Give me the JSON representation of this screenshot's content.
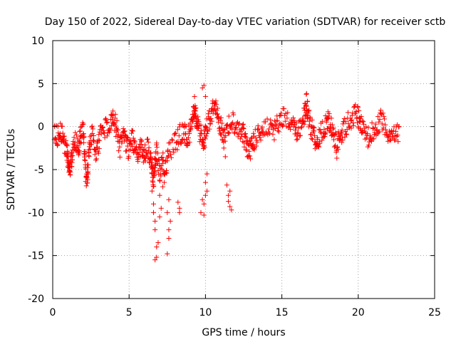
{
  "chart_data": {
    "type": "scatter",
    "title": "Day 150 of 2022, Sidereal Day-to-day VTEC variation (SDTVAR) for receiver sctb",
    "xlabel": "GPS time / hours",
    "ylabel": "SDTVAR / TECUs",
    "xlim": [
      0,
      25
    ],
    "ylim": [
      -20,
      10
    ],
    "xticks": [
      0,
      5,
      10,
      15,
      20,
      25
    ],
    "xtick_labels": [
      "0",
      "5",
      "10",
      "15",
      "20",
      "25"
    ],
    "yticks": [
      10,
      5,
      0,
      -5,
      -10,
      -15,
      -20
    ],
    "ytick_labels": [
      "10",
      "5",
      "0",
      "-5",
      "-10",
      "-15",
      "-20"
    ],
    "grid": true,
    "marker": "+",
    "color": "#ff0000",
    "series": [
      {
        "name": "SDTVAR",
        "trace": [
          [
            0.1,
            -0.5
          ],
          [
            0.3,
            -1.2
          ],
          [
            0.5,
            -0.3
          ],
          [
            0.7,
            -1.5
          ],
          [
            0.9,
            -2.5
          ],
          [
            1.0,
            -4.0
          ],
          [
            1.1,
            -5.2
          ],
          [
            1.2,
            -4.5
          ],
          [
            1.3,
            -3.0
          ],
          [
            1.5,
            -1.5
          ],
          [
            1.7,
            -2.8
          ],
          [
            1.8,
            -1.0
          ],
          [
            2.0,
            -0.5
          ],
          [
            2.1,
            -3.5
          ],
          [
            2.2,
            -6.5
          ],
          [
            2.3,
            -5.0
          ],
          [
            2.4,
            -2.0
          ],
          [
            2.6,
            -1.0
          ],
          [
            2.8,
            -3.5
          ],
          [
            3.0,
            -2.0
          ],
          [
            3.2,
            -0.5
          ],
          [
            3.5,
            -0.2
          ],
          [
            3.8,
            0.3
          ],
          [
            4.0,
            1.2
          ],
          [
            4.2,
            -0.5
          ],
          [
            4.4,
            -2.5
          ],
          [
            4.6,
            -1.0
          ],
          [
            4.8,
            -2.0
          ],
          [
            5.0,
            -2.8
          ],
          [
            5.2,
            -1.5
          ],
          [
            5.4,
            -2.5
          ],
          [
            5.6,
            -3.0
          ],
          [
            5.8,
            -2.0
          ],
          [
            6.0,
            -3.5
          ],
          [
            6.2,
            -2.5
          ],
          [
            6.4,
            -4.0
          ],
          [
            6.5,
            -5.0
          ],
          [
            6.6,
            -6.5
          ],
          [
            6.7,
            -4.0
          ],
          [
            6.8,
            -2.5
          ],
          [
            7.0,
            -5.5
          ],
          [
            7.2,
            -4.0
          ],
          [
            7.4,
            -5.0
          ],
          [
            7.6,
            -3.0
          ],
          [
            8.0,
            -2.0
          ],
          [
            8.3,
            -1.0
          ],
          [
            8.6,
            -0.5
          ],
          [
            8.8,
            -1.5
          ],
          [
            9.0,
            -0.5
          ],
          [
            9.2,
            1.5
          ],
          [
            9.3,
            2.5
          ],
          [
            9.4,
            1.0
          ],
          [
            9.5,
            0.0
          ],
          [
            9.7,
            -1.0
          ],
          [
            9.9,
            -2.0
          ],
          [
            10.0,
            -0.5
          ],
          [
            10.2,
            0.5
          ],
          [
            10.4,
            1.5
          ],
          [
            10.6,
            2.5
          ],
          [
            10.8,
            1.5
          ],
          [
            11.0,
            0.0
          ],
          [
            11.2,
            -1.0
          ],
          [
            11.5,
            0.0
          ],
          [
            11.8,
            0.5
          ],
          [
            12.1,
            0.0
          ],
          [
            12.4,
            -0.5
          ],
          [
            12.6,
            -1.5
          ],
          [
            12.8,
            -3.0
          ],
          [
            13.0,
            -2.5
          ],
          [
            13.2,
            -1.5
          ],
          [
            13.5,
            -0.8
          ],
          [
            13.8,
            -0.3
          ],
          [
            14.2,
            0.2
          ],
          [
            14.5,
            -0.5
          ],
          [
            14.8,
            0.5
          ],
          [
            15.1,
            1.0
          ],
          [
            15.5,
            0.3
          ],
          [
            15.8,
            -0.2
          ],
          [
            16.0,
            -0.8
          ],
          [
            16.3,
            0.2
          ],
          [
            16.5,
            1.5
          ],
          [
            16.6,
            3.0
          ],
          [
            16.7,
            1.5
          ],
          [
            16.9,
            0.0
          ],
          [
            17.1,
            -1.0
          ],
          [
            17.3,
            -2.0
          ],
          [
            17.5,
            -1.0
          ],
          [
            17.8,
            0.0
          ],
          [
            18.0,
            0.8
          ],
          [
            18.2,
            0.0
          ],
          [
            18.4,
            -1.0
          ],
          [
            18.6,
            -2.5
          ],
          [
            18.8,
            -1.0
          ],
          [
            19.0,
            -0.5
          ],
          [
            19.3,
            0.5
          ],
          [
            19.6,
            1.0
          ],
          [
            19.9,
            1.5
          ],
          [
            20.1,
            0.5
          ],
          [
            20.3,
            -0.5
          ],
          [
            20.6,
            -1.5
          ],
          [
            20.9,
            -0.5
          ],
          [
            21.2,
            0.0
          ],
          [
            21.5,
            1.0
          ],
          [
            21.8,
            0.0
          ],
          [
            22.1,
            -1.5
          ],
          [
            22.4,
            -0.8
          ],
          [
            22.7,
            -1.0
          ]
        ],
        "outliers": [
          [
            6.5,
            -7.5
          ],
          [
            6.6,
            -9.0
          ],
          [
            6.6,
            -10.0
          ],
          [
            6.7,
            -11.0
          ],
          [
            6.7,
            -12.0
          ],
          [
            6.8,
            -14.0
          ],
          [
            6.8,
            -15.2
          ],
          [
            6.7,
            -15.5
          ],
          [
            6.9,
            -13.5
          ],
          [
            7.0,
            -8.0
          ],
          [
            7.0,
            -10.5
          ],
          [
            7.1,
            -9.5
          ],
          [
            7.2,
            -7.0
          ],
          [
            7.3,
            -6.5
          ],
          [
            7.5,
            -10.0
          ],
          [
            7.6,
            -12.0
          ],
          [
            7.6,
            -13.0
          ],
          [
            7.7,
            -11.0
          ],
          [
            7.5,
            -14.8
          ],
          [
            7.6,
            -8.5
          ],
          [
            8.2,
            -8.8
          ],
          [
            8.3,
            -9.5
          ],
          [
            8.3,
            -10.0
          ],
          [
            9.8,
            -8.5
          ],
          [
            9.9,
            -9.0
          ],
          [
            9.9,
            -10.3
          ],
          [
            10.0,
            -8.0
          ],
          [
            10.0,
            -6.5
          ],
          [
            10.1,
            -7.5
          ],
          [
            10.1,
            -5.5
          ],
          [
            9.7,
            -10.0
          ],
          [
            9.8,
            4.5
          ],
          [
            9.9,
            4.8
          ],
          [
            10.0,
            3.5
          ],
          [
            11.4,
            -6.8
          ],
          [
            11.5,
            -8.0
          ],
          [
            11.6,
            -7.5
          ],
          [
            11.5,
            -8.7
          ],
          [
            11.6,
            -9.3
          ],
          [
            11.7,
            -9.7
          ],
          [
            11.2,
            -2.5
          ],
          [
            11.3,
            -3.5
          ]
        ]
      }
    ]
  }
}
